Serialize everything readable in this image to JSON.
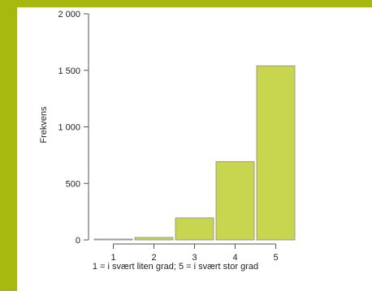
{
  "chart_data": {
    "type": "bar",
    "categories": [
      "1",
      "2",
      "3",
      "4",
      "5"
    ],
    "values": [
      8,
      22,
      195,
      693,
      1540
    ],
    "ylabel": "Frekvens",
    "xlabel": "1 = i svært liten grad; 5 = i svært stor grad",
    "ylim": [
      0,
      2000
    ],
    "yticks": [
      0,
      500,
      1000,
      1500,
      2000
    ],
    "ytick_labels": [
      "0",
      "500",
      "1 000",
      "1 500",
      "2 000"
    ],
    "grid": false,
    "bar_color": "#c8d64f",
    "background_color": "#a7b80f"
  }
}
